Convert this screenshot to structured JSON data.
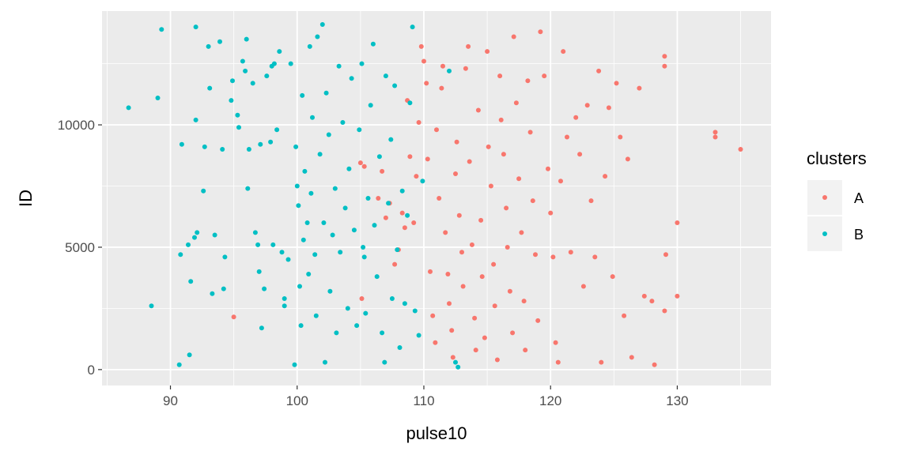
{
  "chart_data": {
    "type": "scatter",
    "xlabel": "pulse10",
    "ylabel": "ID",
    "xlim": [
      84.6,
      137.4
    ],
    "ylim": [
      -650,
      14650
    ],
    "xticks": [
      90,
      100,
      110,
      120,
      130
    ],
    "yticks": [
      0,
      5000,
      10000
    ],
    "xtick_labels": [
      "90",
      "100",
      "110",
      "120",
      "130"
    ],
    "ytick_labels": [
      "0",
      "5000",
      "10000"
    ],
    "grid": true,
    "legend": {
      "title": "clusters",
      "position": "right"
    },
    "series": [
      {
        "name": "A",
        "color": "#F8766D",
        "points": [
          [
            95,
            2150
          ],
          [
            105,
            8450
          ],
          [
            105.3,
            8300
          ],
          [
            105.1,
            2900
          ],
          [
            106.4,
            7000
          ],
          [
            106.7,
            8100
          ],
          [
            107,
            6200
          ],
          [
            107.3,
            6800
          ],
          [
            107.7,
            4300
          ],
          [
            108,
            4900
          ],
          [
            108.3,
            6400
          ],
          [
            108.5,
            5800
          ],
          [
            108.7,
            11000
          ],
          [
            108.9,
            8700
          ],
          [
            109.2,
            6000
          ],
          [
            109.4,
            7900
          ],
          [
            109.6,
            10100
          ],
          [
            109.8,
            13200
          ],
          [
            110,
            12600
          ],
          [
            110.2,
            11700
          ],
          [
            110.3,
            8600
          ],
          [
            110.5,
            4000
          ],
          [
            110.7,
            2200
          ],
          [
            110.9,
            1100
          ],
          [
            111,
            9800
          ],
          [
            111.2,
            7000
          ],
          [
            111.4,
            11500
          ],
          [
            111.5,
            12400
          ],
          [
            111.7,
            5600
          ],
          [
            111.9,
            3900
          ],
          [
            112,
            2700
          ],
          [
            112.2,
            1600
          ],
          [
            112.3,
            500
          ],
          [
            112.5,
            8000
          ],
          [
            112.6,
            9300
          ],
          [
            112.8,
            6300
          ],
          [
            113,
            4800
          ],
          [
            113.1,
            3400
          ],
          [
            113.3,
            12300
          ],
          [
            113.5,
            13200
          ],
          [
            113.6,
            8500
          ],
          [
            113.8,
            5100
          ],
          [
            114,
            2100
          ],
          [
            114.1,
            800
          ],
          [
            114.3,
            10600
          ],
          [
            114.5,
            6100
          ],
          [
            114.6,
            3800
          ],
          [
            114.8,
            1300
          ],
          [
            115,
            13000
          ],
          [
            115.1,
            9100
          ],
          [
            115.3,
            7500
          ],
          [
            115.5,
            4300
          ],
          [
            115.6,
            2600
          ],
          [
            115.8,
            400
          ],
          [
            116,
            12000
          ],
          [
            116.1,
            10200
          ],
          [
            116.3,
            8800
          ],
          [
            116.5,
            6600
          ],
          [
            116.6,
            5000
          ],
          [
            116.8,
            3200
          ],
          [
            117,
            1500
          ],
          [
            117.1,
            13600
          ],
          [
            117.3,
            10900
          ],
          [
            117.5,
            7800
          ],
          [
            117.7,
            5600
          ],
          [
            117.9,
            2800
          ],
          [
            118,
            800
          ],
          [
            118.2,
            11800
          ],
          [
            118.4,
            9700
          ],
          [
            118.6,
            6900
          ],
          [
            118.8,
            4700
          ],
          [
            119,
            2000
          ],
          [
            119.2,
            13800
          ],
          [
            119.5,
            12000
          ],
          [
            119.8,
            8200
          ],
          [
            120,
            6400
          ],
          [
            120.2,
            4600
          ],
          [
            120.4,
            1100
          ],
          [
            120.6,
            300
          ],
          [
            120.8,
            7700
          ],
          [
            121,
            13000
          ],
          [
            121.3,
            9500
          ],
          [
            121.6,
            4800
          ],
          [
            122,
            10300
          ],
          [
            122.3,
            8800
          ],
          [
            122.6,
            3400
          ],
          [
            122.9,
            10800
          ],
          [
            123.2,
            6900
          ],
          [
            123.5,
            4600
          ],
          [
            123.8,
            12200
          ],
          [
            124,
            300
          ],
          [
            124.3,
            7900
          ],
          [
            124.6,
            10700
          ],
          [
            124.9,
            3800
          ],
          [
            125.2,
            11700
          ],
          [
            125.5,
            9500
          ],
          [
            125.8,
            2200
          ],
          [
            126.1,
            8600
          ],
          [
            126.4,
            500
          ],
          [
            127,
            11500
          ],
          [
            127.4,
            3000
          ],
          [
            128,
            2800
          ],
          [
            128.2,
            200
          ],
          [
            129,
            12800
          ],
          [
            129,
            12400
          ],
          [
            129.1,
            4700
          ],
          [
            129,
            2400
          ],
          [
            130,
            6000
          ],
          [
            130,
            3000
          ],
          [
            133,
            9700
          ],
          [
            133,
            9500
          ],
          [
            135,
            9000
          ]
        ]
      },
      {
        "name": "B",
        "color": "#00BFC4",
        "points": [
          [
            86.7,
            10700
          ],
          [
            88.5,
            2600
          ],
          [
            89,
            11100
          ],
          [
            89.3,
            13900
          ],
          [
            90.7,
            200
          ],
          [
            90.8,
            4700
          ],
          [
            90.9,
            9200
          ],
          [
            91.4,
            5100
          ],
          [
            91.5,
            600
          ],
          [
            91.6,
            3600
          ],
          [
            91.9,
            5400
          ],
          [
            92,
            14000
          ],
          [
            92,
            10200
          ],
          [
            92.1,
            5600
          ],
          [
            92.6,
            7300
          ],
          [
            92.7,
            9100
          ],
          [
            93,
            13200
          ],
          [
            93.1,
            11500
          ],
          [
            93.3,
            3100
          ],
          [
            93.5,
            5500
          ],
          [
            93.9,
            13400
          ],
          [
            94.1,
            9000
          ],
          [
            94.2,
            3300
          ],
          [
            94.3,
            4600
          ],
          [
            94.8,
            11000
          ],
          [
            94.9,
            11800
          ],
          [
            95.3,
            10400
          ],
          [
            95.4,
            9900
          ],
          [
            95.7,
            12600
          ],
          [
            95.9,
            12200
          ],
          [
            96,
            13500
          ],
          [
            96.1,
            7400
          ],
          [
            96.2,
            9000
          ],
          [
            96.5,
            11700
          ],
          [
            96.7,
            5600
          ],
          [
            96.9,
            5100
          ],
          [
            97,
            4000
          ],
          [
            97.1,
            9200
          ],
          [
            97.2,
            1700
          ],
          [
            97.4,
            3300
          ],
          [
            97.6,
            12000
          ],
          [
            97.9,
            9300
          ],
          [
            98,
            12400
          ],
          [
            98.1,
            5100
          ],
          [
            98.2,
            12500
          ],
          [
            98.4,
            9800
          ],
          [
            98.6,
            13000
          ],
          [
            98.8,
            4800
          ],
          [
            99,
            2600
          ],
          [
            99,
            2900
          ],
          [
            99.3,
            4500
          ],
          [
            99.5,
            12500
          ],
          [
            99.8,
            200
          ],
          [
            99.9,
            9100
          ],
          [
            100,
            7500
          ],
          [
            100.1,
            6700
          ],
          [
            100.2,
            3400
          ],
          [
            100.3,
            1800
          ],
          [
            100.4,
            11200
          ],
          [
            100.5,
            5300
          ],
          [
            100.6,
            8100
          ],
          [
            100.8,
            6000
          ],
          [
            100.9,
            3900
          ],
          [
            101,
            13200
          ],
          [
            101.1,
            7200
          ],
          [
            101.2,
            10300
          ],
          [
            101.4,
            4700
          ],
          [
            101.5,
            2200
          ],
          [
            101.6,
            13600
          ],
          [
            101.8,
            8800
          ],
          [
            102,
            14100
          ],
          [
            102.1,
            6000
          ],
          [
            102.2,
            300
          ],
          [
            102.3,
            11300
          ],
          [
            102.5,
            9600
          ],
          [
            102.6,
            3200
          ],
          [
            102.8,
            5500
          ],
          [
            103,
            7400
          ],
          [
            103.1,
            1500
          ],
          [
            103.3,
            12400
          ],
          [
            103.4,
            4800
          ],
          [
            103.6,
            10100
          ],
          [
            103.8,
            6600
          ],
          [
            104,
            2500
          ],
          [
            104.1,
            8200
          ],
          [
            104.3,
            11900
          ],
          [
            104.5,
            5700
          ],
          [
            104.7,
            1800
          ],
          [
            104.9,
            9800
          ],
          [
            105.1,
            12500
          ],
          [
            105.2,
            5000
          ],
          [
            105.3,
            4600
          ],
          [
            105.4,
            2300
          ],
          [
            105.6,
            7000
          ],
          [
            105.8,
            10800
          ],
          [
            106,
            13300
          ],
          [
            106.1,
            5900
          ],
          [
            106.3,
            3800
          ],
          [
            106.5,
            8700
          ],
          [
            106.7,
            1500
          ],
          [
            106.9,
            300
          ],
          [
            107,
            12000
          ],
          [
            107.2,
            6800
          ],
          [
            107.4,
            9400
          ],
          [
            107.5,
            2900
          ],
          [
            107.7,
            11600
          ],
          [
            107.9,
            4900
          ],
          [
            108.1,
            900
          ],
          [
            108.3,
            7300
          ],
          [
            108.5,
            2700
          ],
          [
            108.7,
            6300
          ],
          [
            108.9,
            10900
          ],
          [
            109.1,
            14000
          ],
          [
            109.3,
            2400
          ],
          [
            109.6,
            1400
          ],
          [
            109.9,
            7700
          ],
          [
            112,
            12200
          ],
          [
            112.5,
            300
          ],
          [
            112.7,
            100
          ]
        ]
      }
    ]
  }
}
